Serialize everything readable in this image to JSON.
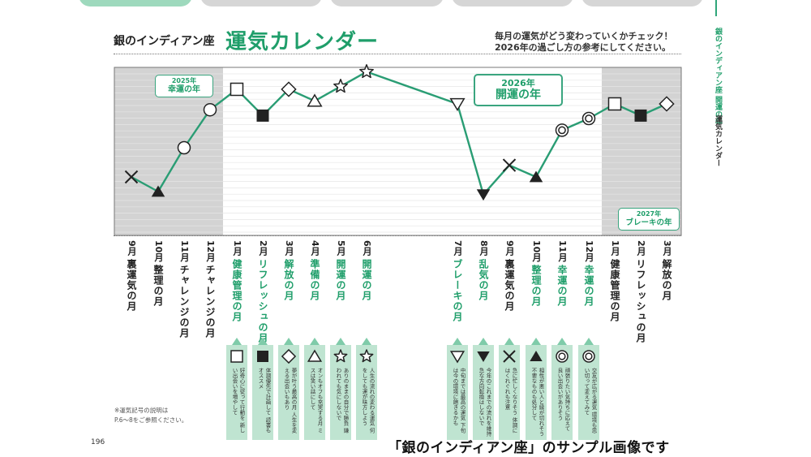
{
  "sidebar_text": {
    "line1": "銀のインディアン座 開運の年",
    "line2": "運気カレンダー"
  },
  "header": {
    "subtitle": "銀のインディアン座",
    "title": "運気カレンダー",
    "desc_line1": "毎月の運気がどう変わっていくかチェック！",
    "desc_line2": "2026年の過ごし方の参考にしてください。"
  },
  "balloons": {
    "b2025": {
      "year": "2025年",
      "label": "幸運の年"
    },
    "b2026": {
      "year": "2026年",
      "label": "開運の年"
    },
    "b2027": {
      "year": "2027年",
      "label": "ブレーキの年"
    }
  },
  "colors": {
    "accent": "#1f9e6a",
    "line": "#2a9d74",
    "shade": "#d3d3d3",
    "card": "#bfe4d1"
  },
  "chart_data": {
    "type": "line",
    "x": [
      "9月",
      "10月",
      "11月",
      "12月",
      "1月",
      "2月",
      "3月",
      "4月",
      "5月",
      "6月",
      "7月",
      "8月",
      "9月",
      "10月",
      "11月",
      "12月",
      "1月",
      "2月",
      "3月"
    ],
    "values": [
      2,
      1.5,
      3,
      4.3,
      5,
      4.1,
      5,
      4.6,
      5.1,
      5.6,
      4.5,
      1.4,
      2.4,
      2.0,
      3.6,
      4.0,
      4.5,
      4.1,
      4.5
    ],
    "markers": [
      "cross",
      "triangle-filled",
      "circle",
      "circle",
      "square",
      "square-filled",
      "diamond",
      "triangle",
      "star",
      "star",
      "triangle-down",
      "triangle-down-filled",
      "cross",
      "triangle-filled",
      "double-circle",
      "double-circle",
      "square",
      "square-filled",
      "diamond"
    ],
    "gap_between_index": [
      9,
      10
    ],
    "shaded_ranges_index": [
      [
        0,
        3
      ],
      [
        16,
        18
      ]
    ],
    "grid": true
  },
  "months": [
    {
      "num": "9月",
      "name": "裏運気の月"
    },
    {
      "num": "10月",
      "name": "整理の月"
    },
    {
      "num": "11月",
      "name": "チャレンジの月"
    },
    {
      "num": "12月",
      "name": "チャレンジの月"
    },
    {
      "num": "1月",
      "name": "健康管理の月"
    },
    {
      "num": "2月",
      "name": "リフレッシュの月"
    },
    {
      "num": "3月",
      "name": "解放の月"
    },
    {
      "num": "4月",
      "name": "準備の月"
    },
    {
      "num": "5月",
      "name": "開運の月"
    },
    {
      "num": "6月",
      "name": "開運の月"
    },
    {
      "num": "7月",
      "name": "ブレーキの月"
    },
    {
      "num": "8月",
      "name": "乱気の月"
    },
    {
      "num": "9月",
      "name": "裏運気の月"
    },
    {
      "num": "10月",
      "name": "整理の月"
    },
    {
      "num": "11月",
      "name": "幸運の月"
    },
    {
      "num": "12月",
      "name": "幸運の月"
    },
    {
      "num": "1月",
      "name": "健康管理の月"
    },
    {
      "num": "2月",
      "name": "リフレッシュの月"
    },
    {
      "num": "3月",
      "name": "解放の月"
    }
  ],
  "cards": [
    {
      "symbol": "square",
      "text": "好奇心に従って行動を 新しい出会いを増やして"
    },
    {
      "symbol": "square-filled",
      "text": "体調優先で計画して 読書もオススメ"
    },
    {
      "symbol": "diamond",
      "text": "夢が叶う最高の月 人生を変える出会いもあり"
    },
    {
      "symbol": "triangle",
      "text": "オンもオフも充実する月 ミスは笑い話にして"
    },
    {
      "symbol": "star",
      "text": "ありのままの自分で勝負 嫌われても気にしないで"
    },
    {
      "symbol": "star",
      "text": "人生の流れの変わる運気 何をしても運が味方しよう"
    },
    {
      "symbol": "triangle-down",
      "text": "中旬までは最高の運気 下旬は今の環境に飽きるかも"
    },
    {
      "symbol": "triangle-down-filled",
      "text": "今年のこれまでの流れを維持 急な方向転換はしないで"
    },
    {
      "symbol": "cross",
      "text": "急に忙しくなりそう 体調にはくれぐれも注意"
    },
    {
      "symbol": "triangle-filled",
      "text": "相性が悪い人と縁が切れそう 不要なものも処分して"
    },
    {
      "symbol": "double-circle",
      "text": "頑張りたい気持ちに応えて 良い出会いがありそう"
    },
    {
      "symbol": "double-circle",
      "text": "交友が広がる運気 環境も思い切って変えてみて"
    }
  ],
  "note": {
    "line1": "※運気記号の説明は",
    "line2": "P.6〜8をご参照ください。"
  },
  "page_number": "196",
  "caption": "「銀のインディアン座」のサンプル画像です"
}
